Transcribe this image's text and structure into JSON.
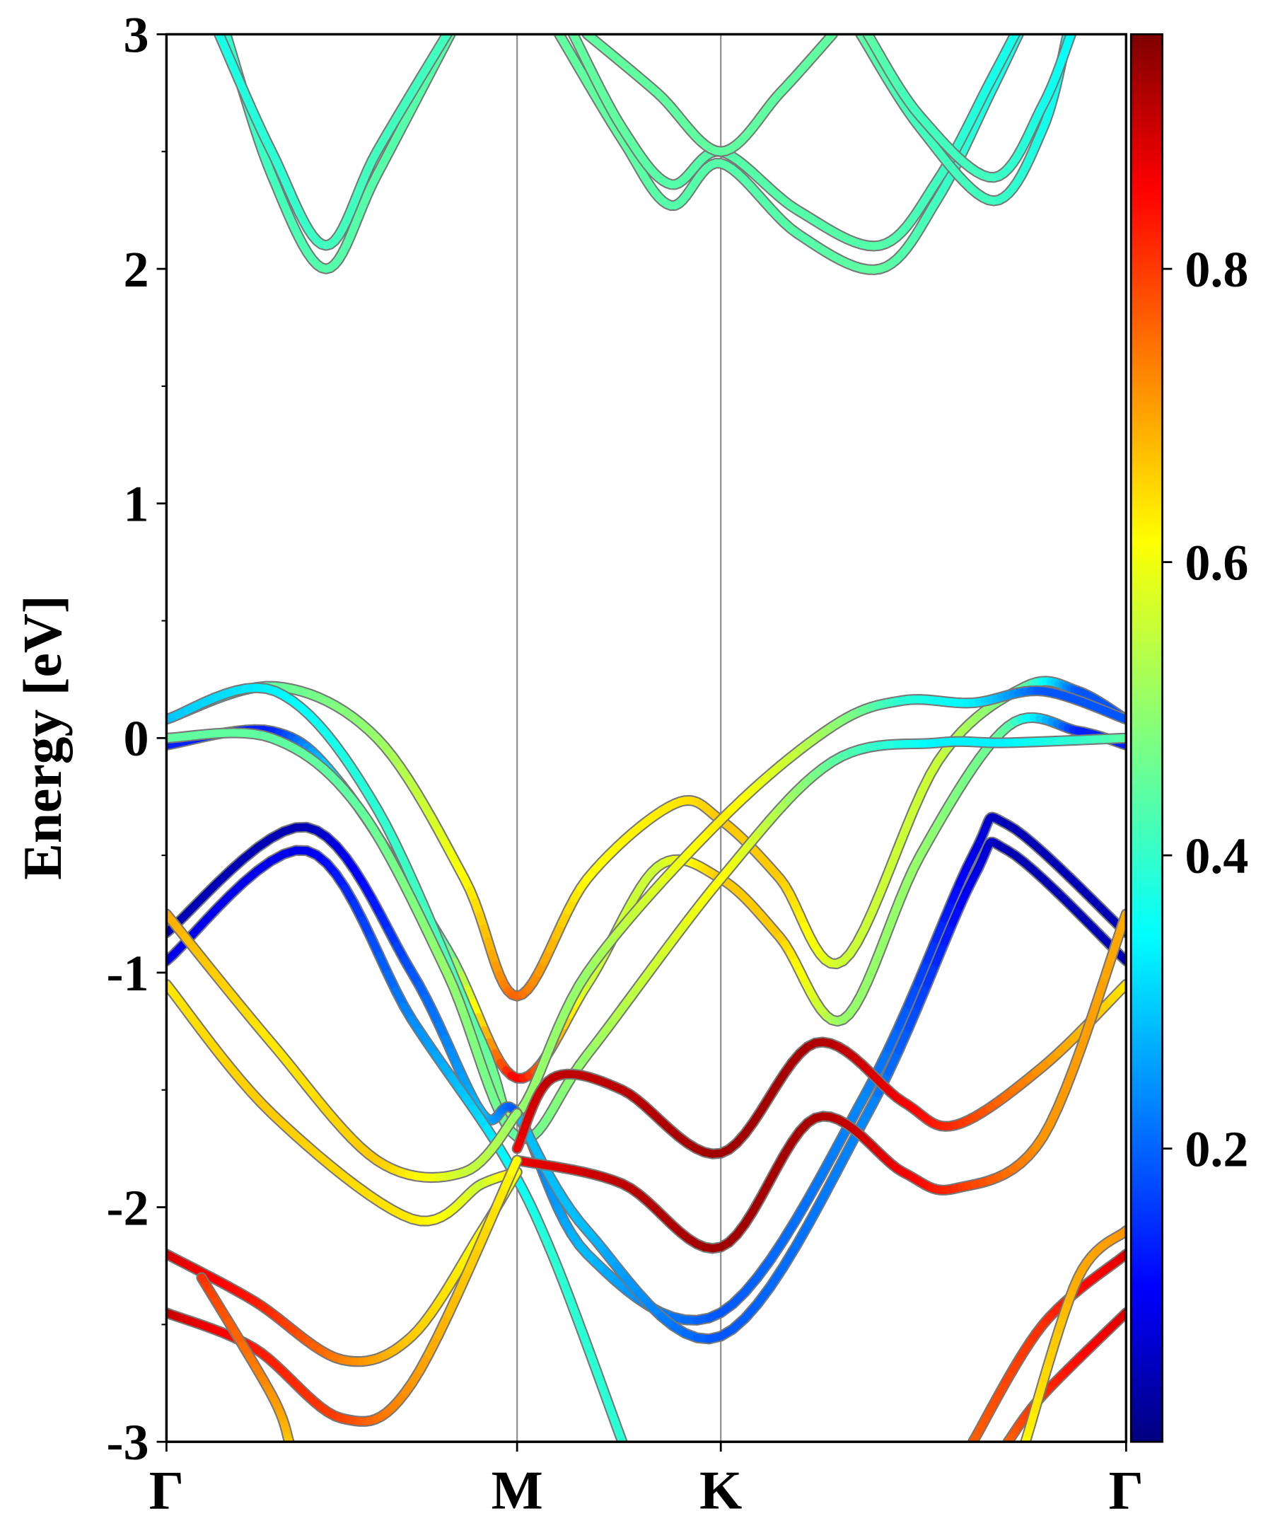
{
  "chart_data": {
    "type": "line",
    "title": "",
    "xlabel": "",
    "ylabel": "Energy [eV]",
    "ylim": [
      -3,
      3
    ],
    "yticks": [
      "-3",
      "-2",
      "-1",
      "0",
      "1",
      "2",
      "3"
    ],
    "ytick_values": [
      -3,
      -2,
      -1,
      0,
      1,
      2,
      3
    ],
    "kpoints": [
      {
        "label": "Γ",
        "k": 0
      },
      {
        "label": "M",
        "k": 1
      },
      {
        "label": "K",
        "k": 1.581
      },
      {
        "label": "Γ",
        "k": 2.737
      }
    ],
    "colorbar": {
      "range": [
        0,
        0.96
      ],
      "colormap": "jet",
      "ticks": [
        "0.2",
        "0.4",
        "0.6",
        "0.8"
      ],
      "tick_values": [
        0.2,
        0.4,
        0.6,
        0.8
      ]
    },
    "bands_format": "[k, energy_eV, weight]",
    "bands": [
      [
        [
          0.17,
          3,
          0.4
        ],
        [
          0.3,
          2.4,
          0.42
        ],
        [
          0.455,
          2.0,
          0.44
        ],
        [
          0.6,
          2.4,
          0.44
        ],
        [
          0.81,
          3,
          0.44
        ]
      ],
      [
        [
          0.15,
          3,
          0.38
        ],
        [
          0.3,
          2.5,
          0.4
        ],
        [
          0.455,
          2.1,
          0.42
        ],
        [
          0.6,
          2.5,
          0.42
        ],
        [
          0.8,
          3,
          0.42
        ]
      ],
      [
        [
          1.12,
          3,
          0.45
        ],
        [
          1.3,
          2.55,
          0.45
        ],
        [
          1.439,
          2.27,
          0.44
        ],
        [
          1.581,
          2.45,
          0.44
        ],
        [
          1.8,
          2.15,
          0.44
        ],
        [
          2.036,
          2.0,
          0.45
        ],
        [
          2.2,
          2.3,
          0.42
        ],
        [
          2.35,
          2.75,
          0.38
        ],
        [
          2.43,
          3,
          0.38
        ]
      ],
      [
        [
          1.16,
          3,
          0.45
        ],
        [
          1.3,
          2.6,
          0.45
        ],
        [
          1.439,
          2.36,
          0.44
        ],
        [
          1.581,
          2.5,
          0.44
        ],
        [
          1.8,
          2.25,
          0.44
        ],
        [
          2.036,
          2.1,
          0.44
        ],
        [
          2.2,
          2.38,
          0.42
        ],
        [
          2.35,
          2.8,
          0.38
        ],
        [
          2.42,
          3,
          0.38
        ]
      ],
      [
        [
          1.2,
          3,
          0.45
        ],
        [
          1.4,
          2.75,
          0.45
        ],
        [
          1.581,
          2.5,
          0.45
        ],
        [
          1.75,
          2.75,
          0.45
        ],
        [
          1.9,
          3,
          0.45
        ]
      ],
      [
        [
          1.98,
          3,
          0.45
        ],
        [
          2.15,
          2.6,
          0.42
        ],
        [
          2.36,
          2.29,
          0.42
        ],
        [
          2.5,
          2.6,
          0.38
        ],
        [
          2.57,
          3,
          0.36
        ]
      ],
      [
        [
          2.0,
          3,
          0.45
        ],
        [
          2.15,
          2.65,
          0.42
        ],
        [
          2.36,
          2.39,
          0.42
        ],
        [
          2.5,
          2.7,
          0.38
        ],
        [
          2.58,
          3,
          0.36
        ]
      ],
      [
        [
          0,
          0.08,
          0.2
        ],
        [
          0.31,
          0.22,
          0.45
        ],
        [
          0.6,
          0,
          0.5
        ],
        [
          0.85,
          -0.6,
          0.6
        ],
        [
          1,
          -1.1,
          0.75
        ],
        [
          1.2,
          -0.6,
          0.6
        ],
        [
          1.45,
          -0.28,
          0.62
        ],
        [
          1.581,
          -0.35,
          0.65
        ],
        [
          1.75,
          -0.6,
          0.65
        ],
        [
          1.93,
          -0.95,
          0.55
        ],
        [
          2.2,
          -0.1,
          0.55
        ],
        [
          2.45,
          0.22,
          0.45
        ],
        [
          2.6,
          0.2,
          0.2
        ],
        [
          2.737,
          0.08,
          0.2
        ]
      ],
      [
        [
          0,
          -0.03,
          0.15
        ],
        [
          0.3,
          0.03,
          0.15
        ],
        [
          0.5,
          -0.2,
          0.35
        ],
        [
          0.8,
          -0.9,
          0.45
        ],
        [
          1,
          -1.45,
          0.85
        ],
        [
          1.2,
          -1.05,
          0.55
        ],
        [
          1.4,
          -0.55,
          0.55
        ],
        [
          1.581,
          -0.6,
          0.65
        ],
        [
          1.75,
          -0.85,
          0.65
        ],
        [
          1.93,
          -1.2,
          0.5
        ],
        [
          2.15,
          -0.5,
          0.5
        ],
        [
          2.4,
          0.05,
          0.45
        ],
        [
          2.6,
          0.03,
          0.15
        ],
        [
          2.737,
          -0.03,
          0.15
        ]
      ],
      [
        [
          0,
          0.08,
          0.3
        ],
        [
          0.31,
          0.2,
          0.35
        ],
        [
          0.6,
          -0.3,
          0.4
        ],
        [
          0.9,
          -1.3,
          0.45
        ],
        [
          1,
          -1.6,
          0.5
        ],
        [
          1.2,
          -1.0,
          0.5
        ],
        [
          1.581,
          -0.35,
          0.62
        ],
        [
          1.9,
          0.05,
          0.5
        ],
        [
          2.1,
          0.16,
          0.4
        ],
        [
          2.3,
          0.15,
          0.35
        ],
        [
          2.5,
          0.2,
          0.2
        ],
        [
          2.737,
          0.08,
          0.2
        ]
      ],
      [
        [
          0,
          0,
          0.45
        ],
        [
          0.3,
          0,
          0.45
        ],
        [
          0.55,
          -0.3,
          0.45
        ],
        [
          0.8,
          -1.0,
          0.5
        ],
        [
          1,
          -1.7,
          0.45
        ],
        [
          1.2,
          -1.35,
          0.5
        ],
        [
          1.581,
          -0.6,
          0.6
        ],
        [
          1.9,
          -0.1,
          0.45
        ],
        [
          2.2,
          -0.02,
          0.35
        ],
        [
          2.4,
          -0.02,
          0.35
        ],
        [
          2.737,
          0,
          0.45
        ]
      ],
      [
        [
          0,
          -0.83,
          0.05
        ],
        [
          0.4,
          -0.38,
          0.05
        ],
        [
          0.7,
          -1.0,
          0.2
        ],
        [
          0.9,
          -1.6,
          0.3
        ],
        [
          1,
          -1.6,
          0.2
        ],
        [
          1.2,
          -2.2,
          0.3
        ],
        [
          1.581,
          -2.45,
          0.2
        ],
        [
          2.0,
          -1.5,
          0.25
        ],
        [
          2.3,
          -0.5,
          0.1
        ],
        [
          2.4,
          -0.37,
          0.05
        ],
        [
          2.737,
          -0.83,
          0.05
        ]
      ],
      [
        [
          0,
          -0.95,
          0.1
        ],
        [
          0.4,
          -0.48,
          0.1
        ],
        [
          0.7,
          -1.2,
          0.25
        ],
        [
          0.95,
          -1.75,
          0.35
        ],
        [
          1.1,
          -2.2,
          0.4
        ],
        [
          1.3,
          -3.0,
          0.4
        ]
      ],
      [
        [
          1,
          -1.6,
          0.3
        ],
        [
          1.2,
          -2.1,
          0.3
        ],
        [
          1.581,
          -2.55,
          0.2
        ],
        [
          2.0,
          -1.6,
          0.25
        ],
        [
          2.3,
          -0.6,
          0.1
        ],
        [
          2.4,
          -0.48,
          0.05
        ],
        [
          2.737,
          -0.95,
          0.05
        ]
      ],
      [
        [
          1,
          -1.75,
          0.85
        ],
        [
          1.1,
          -1.45,
          0.9
        ],
        [
          1.3,
          -1.5,
          0.9
        ],
        [
          1.581,
          -1.77,
          0.93
        ],
        [
          1.85,
          -1.3,
          0.92
        ],
        [
          2.1,
          -1.55,
          0.85
        ],
        [
          2.25,
          -1.65,
          0.8
        ],
        [
          2.5,
          -1.4,
          0.7
        ],
        [
          2.737,
          -1.05,
          0.62
        ]
      ],
      [
        [
          1,
          -1.8,
          0.85
        ],
        [
          1.3,
          -1.9,
          0.9
        ],
        [
          1.581,
          -2.17,
          0.93
        ],
        [
          1.85,
          -1.62,
          0.92
        ],
        [
          2.1,
          -1.85,
          0.85
        ],
        [
          2.25,
          -1.92,
          0.8
        ],
        [
          2.5,
          -1.7,
          0.7
        ],
        [
          2.737,
          -0.75,
          0.68
        ]
      ],
      [
        [
          0,
          -0.75,
          0.68
        ],
        [
          0.3,
          -1.3,
          0.62
        ],
        [
          0.6,
          -1.8,
          0.65
        ],
        [
          0.85,
          -1.85,
          0.55
        ],
        [
          1,
          -1.6,
          0.5
        ]
      ],
      [
        [
          0,
          -1.05,
          0.62
        ],
        [
          0.3,
          -1.6,
          0.65
        ],
        [
          0.7,
          -2.05,
          0.62
        ],
        [
          0.9,
          -1.9,
          0.55
        ],
        [
          1,
          -1.85,
          0.65
        ]
      ],
      [
        [
          0,
          -2.2,
          0.88
        ],
        [
          0.25,
          -2.4,
          0.82
        ],
        [
          0.5,
          -2.65,
          0.72
        ],
        [
          0.7,
          -2.55,
          0.65
        ],
        [
          0.9,
          -2.1,
          0.6
        ],
        [
          1,
          -1.85,
          0.6
        ]
      ],
      [
        [
          0,
          -2.45,
          0.9
        ],
        [
          0.25,
          -2.6,
          0.82
        ],
        [
          0.5,
          -2.9,
          0.78
        ],
        [
          0.7,
          -2.75,
          0.7
        ],
        [
          1,
          -1.8,
          0.6
        ]
      ],
      [
        [
          0.1,
          -2.3,
          0.8
        ],
        [
          0.3,
          -2.8,
          0.7
        ],
        [
          0.35,
          -3,
          0.65
        ]
      ],
      [
        [
          2.737,
          -2.2,
          0.88
        ],
        [
          2.5,
          -2.5,
          0.8
        ],
        [
          2.3,
          -3,
          0.75
        ]
      ],
      [
        [
          2.737,
          -2.45,
          0.88
        ],
        [
          2.5,
          -2.8,
          0.8
        ],
        [
          2.4,
          -3,
          0.75
        ]
      ],
      [
        [
          2.45,
          -3,
          0.6
        ],
        [
          2.6,
          -2.3,
          0.68
        ],
        [
          2.737,
          -2.1,
          0.7
        ]
      ]
    ]
  }
}
